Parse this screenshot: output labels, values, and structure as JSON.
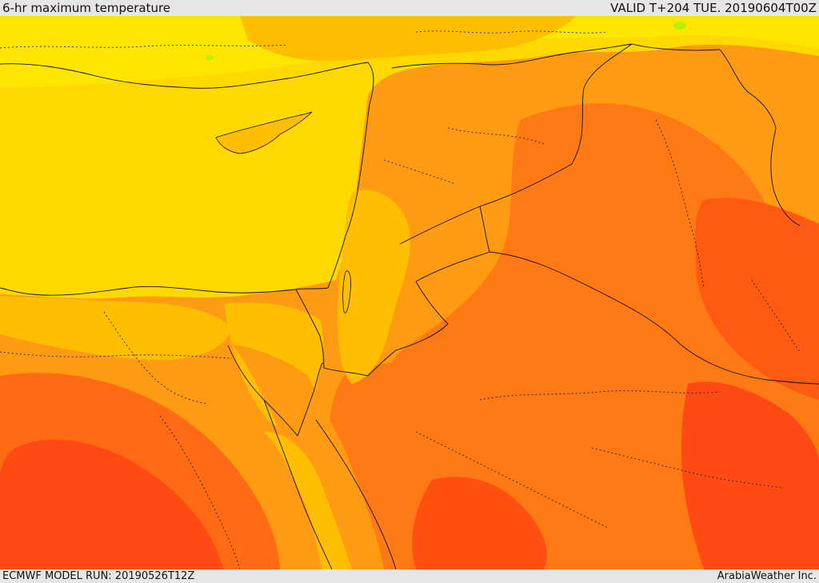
{
  "header": {
    "title": "6-hr maximum temperature",
    "valid_time": "VALID T+204 TUE. 20190604T00Z"
  },
  "footer": {
    "model_run": "ECMWF MODEL RUN: 20190526T12Z",
    "credit": "ArabiaWeather Inc."
  },
  "map": {
    "field": "6-hr maximum temperature",
    "palette": {
      "sea_mild": "#ffd800",
      "warm_yellow": "#ffe600",
      "light_orange": "#ffbf00",
      "orange": "#ff9b12",
      "dark_orange": "#ff7a14",
      "red_orange": "#ff5a12",
      "red": "#ff3b14",
      "cool_green": "#b8f000",
      "border": "#111111"
    }
  }
}
